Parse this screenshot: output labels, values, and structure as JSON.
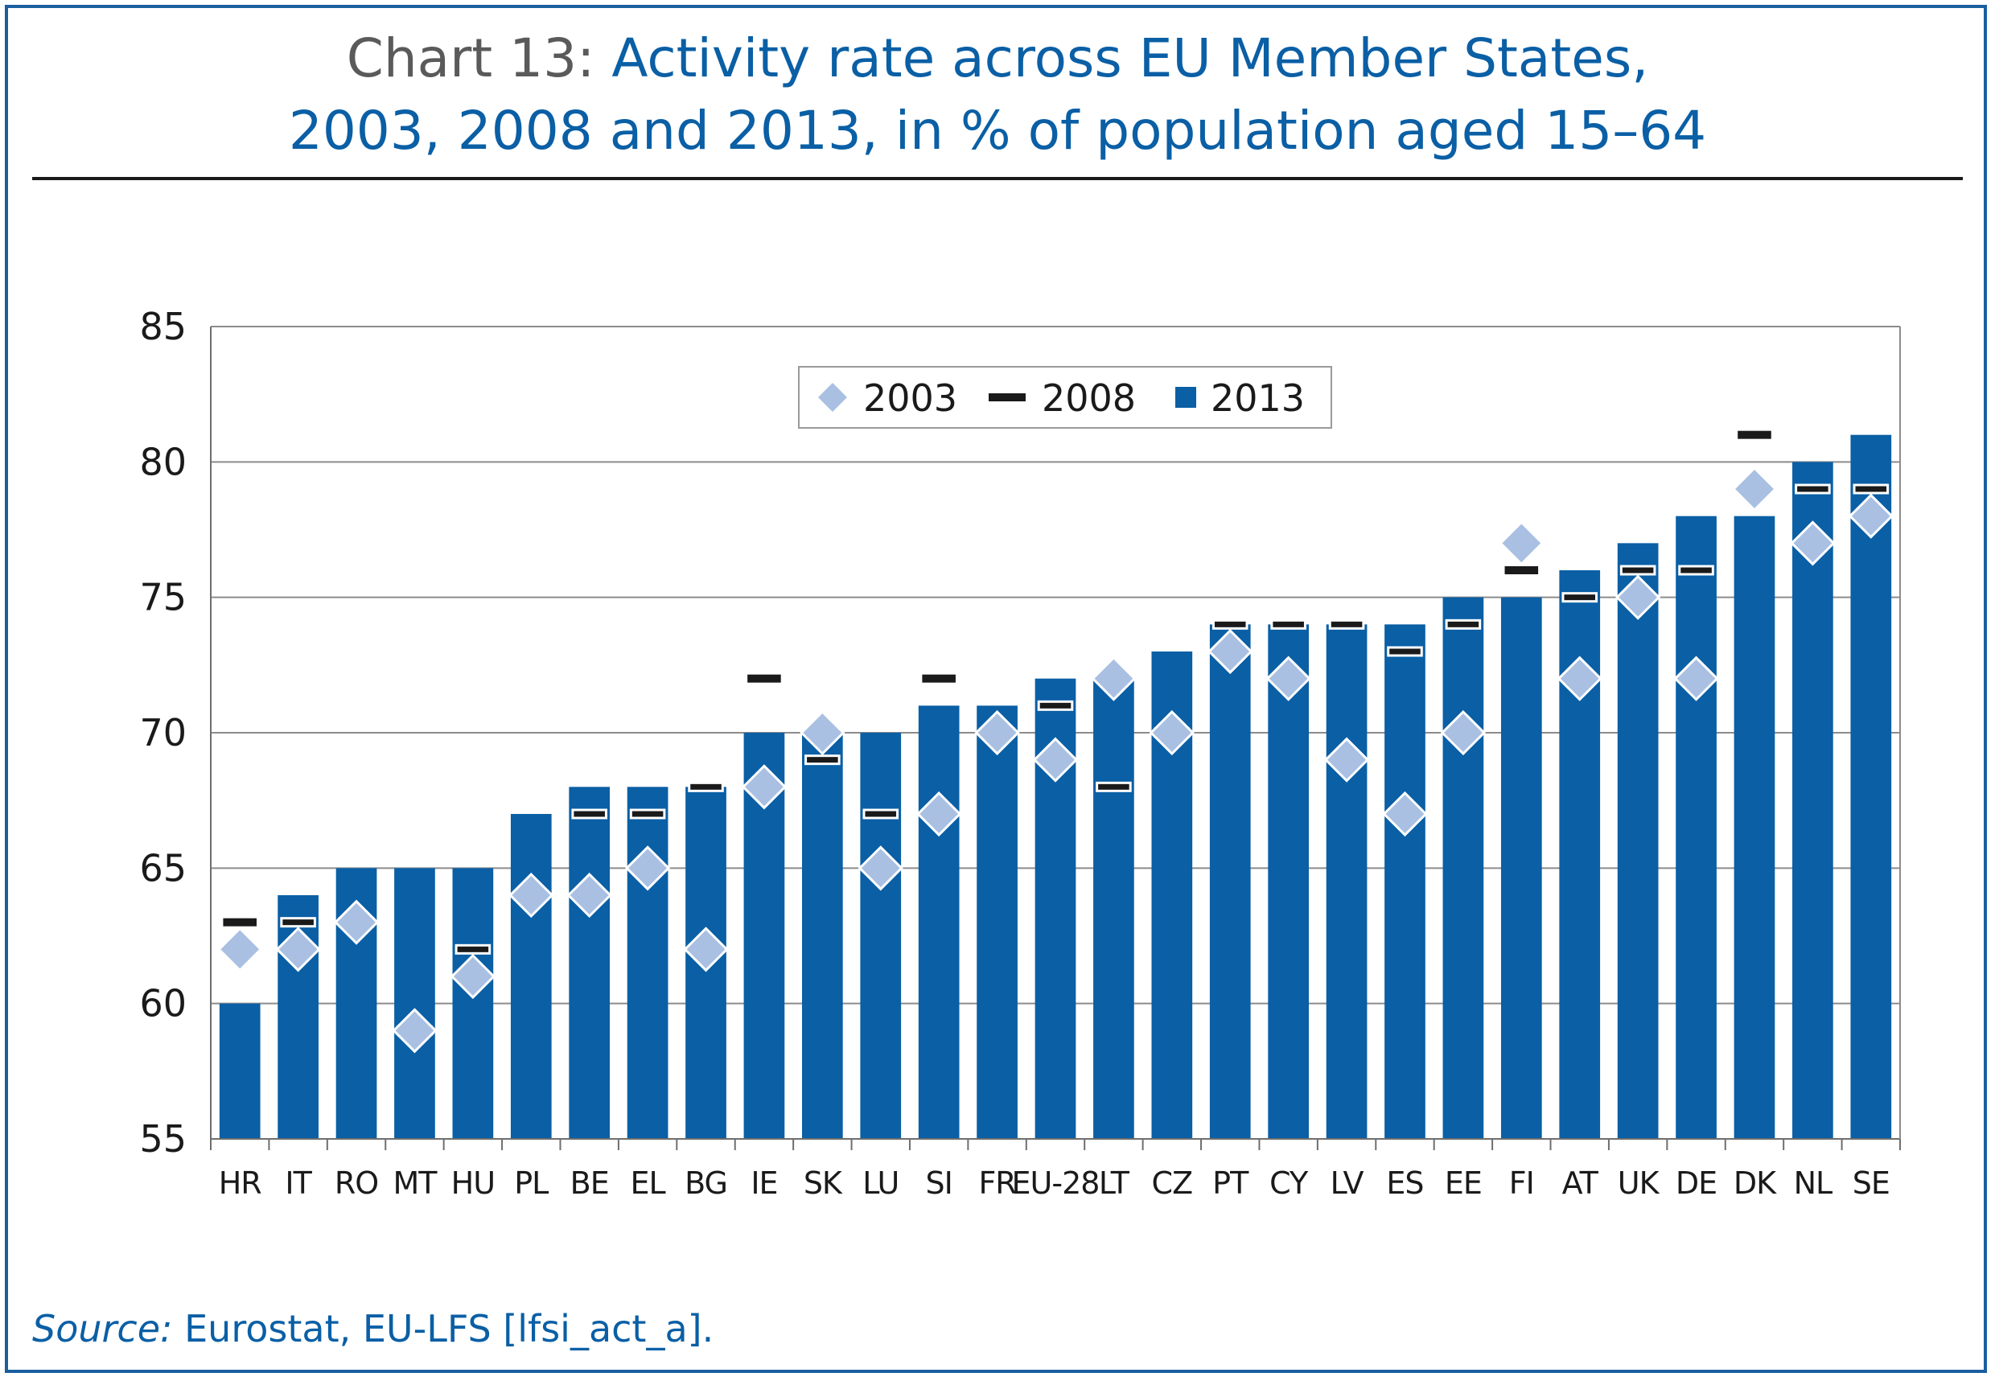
{
  "header": {
    "prefix": "Chart 13:",
    "title_line1": " Activity rate across EU Member States,",
    "title_line2": "2003, 2008 and 2013, in % of population aged 15–64"
  },
  "footer": {
    "source_label": "Source:",
    "source_text": " Eurostat, EU-LFS [lfsi_act_a]."
  },
  "colors": {
    "bar_2013": "#0a5fa5",
    "diamond_2003": "#a9c0e2",
    "dash_2008": "#1a1a1a",
    "title_blue": "#0a5fa5",
    "title_grey": "#5a5a5a"
  },
  "chart_data": {
    "type": "bar",
    "title": "Activity rate across EU Member States, 2003, 2008 and 2013, in % of population aged 15–64",
    "xlabel": "",
    "ylabel": "",
    "ylim": [
      55,
      85
    ],
    "yticks": [
      55,
      60,
      65,
      70,
      75,
      80,
      85
    ],
    "grid": true,
    "legend_position": "top-center",
    "categories": [
      "HR",
      "IT",
      "RO",
      "MT",
      "HU",
      "PL",
      "BE",
      "EL",
      "BG",
      "IE",
      "SK",
      "LU",
      "SI",
      "FR",
      "EU-28",
      "LT",
      "CZ",
      "PT",
      "CY",
      "LV",
      "ES",
      "EE",
      "FI",
      "AT",
      "UK",
      "DE",
      "DK",
      "NL",
      "SE"
    ],
    "series": [
      {
        "name": "2003",
        "marker": "diamond",
        "values": [
          62,
          62,
          63,
          59,
          61,
          64,
          64,
          65,
          62,
          68,
          70,
          65,
          67,
          70,
          69,
          72,
          70,
          73,
          72,
          69,
          67,
          70,
          77,
          72,
          75,
          72,
          79,
          77,
          78
        ]
      },
      {
        "name": "2008",
        "marker": "dash",
        "values": [
          63,
          63,
          63,
          59,
          62,
          64,
          67,
          67,
          68,
          72,
          69,
          67,
          72,
          70,
          71,
          68,
          70,
          74,
          74,
          74,
          73,
          74,
          76,
          75,
          76,
          76,
          81,
          79,
          79
        ]
      },
      {
        "name": "2013",
        "marker": "bar",
        "values": [
          60,
          64,
          65,
          65,
          65,
          67,
          68,
          68,
          68,
          70,
          70,
          70,
          71,
          71,
          72,
          72,
          73,
          74,
          74,
          74,
          74,
          75,
          75,
          76,
          77,
          78,
          78,
          80,
          81
        ]
      }
    ]
  }
}
